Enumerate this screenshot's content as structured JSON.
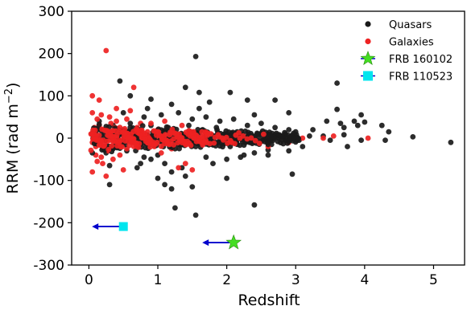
{
  "chart_data": {
    "type": "scatter",
    "xlabel": "Redshift",
    "ylabel": "RRM (rad m",
    "ylabel_sup": "−2",
    "ylabel_close": ")",
    "xlim": [
      -0.25,
      5.45
    ],
    "ylim": [
      -300,
      300
    ],
    "xticks": [
      0,
      1,
      2,
      3,
      4,
      5
    ],
    "yticks": [
      -300,
      -200,
      -100,
      0,
      100,
      200,
      300
    ],
    "grid": false,
    "legend_position": "top-right",
    "colors": {
      "quasars": "#1a1a1a",
      "galaxies": "#ee2222",
      "frb_160102": "#44dd22",
      "frb_110523": "#00e5ee",
      "upper_limit_arrow": "#0000cc"
    },
    "legend": [
      {
        "label": "Quasars",
        "marker": "circle",
        "color": "#1a1a1a"
      },
      {
        "label": "Galaxies",
        "marker": "circle",
        "color": "#ee2222"
      },
      {
        "label": "FRB 160102",
        "marker": "star",
        "color": "#44dd22"
      },
      {
        "label": "FRB 110523",
        "marker": "square",
        "color": "#00e5ee"
      }
    ],
    "series": [
      {
        "name": "Quasars",
        "marker": "circle",
        "points": [
          [
            0.45,
            135
          ],
          [
            0.6,
            100
          ],
          [
            0.9,
            92
          ],
          [
            1.2,
            80
          ],
          [
            1.4,
            120
          ],
          [
            1.55,
            193
          ],
          [
            1.6,
            108
          ],
          [
            1.75,
            85
          ],
          [
            2.05,
            108
          ],
          [
            2.3,
            90
          ],
          [
            2.7,
            90
          ],
          [
            2.9,
            60
          ],
          [
            3.45,
            40
          ],
          [
            3.6,
            68
          ],
          [
            3.65,
            35
          ],
          [
            3.7,
            25
          ],
          [
            3.85,
            40
          ],
          [
            3.9,
            30
          ],
          [
            3.95,
            55
          ],
          [
            4.0,
            38
          ],
          [
            3.6,
            130
          ],
          [
            4.25,
            30
          ],
          [
            4.35,
            15
          ],
          [
            4.7,
            3
          ],
          [
            5.25,
            -10
          ],
          [
            4.3,
            -5
          ],
          [
            3.95,
            -5
          ],
          [
            3.7,
            8
          ],
          [
            3.4,
            5
          ],
          [
            3.5,
            -5
          ],
          [
            3.1,
            -20
          ],
          [
            3.2,
            5
          ],
          [
            0.25,
            -35
          ],
          [
            0.35,
            -25
          ],
          [
            0.55,
            -30
          ],
          [
            0.75,
            -60
          ],
          [
            0.8,
            -45
          ],
          [
            1.0,
            -40
          ],
          [
            1.1,
            -110
          ],
          [
            1.2,
            -80
          ],
          [
            1.25,
            -165
          ],
          [
            1.2,
            -120
          ],
          [
            1.4,
            -90
          ],
          [
            1.5,
            -115
          ],
          [
            1.55,
            -182
          ],
          [
            1.8,
            -60
          ],
          [
            2.0,
            -50
          ],
          [
            2.2,
            -45
          ],
          [
            2.4,
            -35
          ],
          [
            2.6,
            -40
          ],
          [
            2.4,
            -158
          ],
          [
            2.9,
            -30
          ],
          [
            2.95,
            -85
          ],
          [
            2.0,
            -95
          ],
          [
            1.0,
            -95
          ],
          [
            0.3,
            -110
          ],
          [
            0.7,
            -70
          ],
          [
            0.5,
            60
          ],
          [
            0.8,
            50
          ],
          [
            1.05,
            55
          ],
          [
            1.3,
            60
          ],
          [
            1.5,
            45
          ],
          [
            1.7,
            50
          ],
          [
            1.9,
            40
          ],
          [
            2.1,
            45
          ],
          [
            2.3,
            30
          ],
          [
            2.5,
            35
          ],
          [
            2.7,
            25
          ],
          [
            2.9,
            20
          ],
          [
            3.0,
            15
          ],
          [
            0.15,
            40
          ],
          [
            0.35,
            30
          ],
          [
            0.6,
            35
          ],
          [
            0.9,
            30
          ],
          [
            1.15,
            25
          ],
          [
            1.45,
            30
          ],
          [
            1.65,
            20
          ],
          [
            1.85,
            25
          ],
          [
            2.15,
            15
          ],
          [
            2.45,
            10
          ],
          [
            2.75,
            5
          ],
          [
            3.05,
            -5
          ],
          [
            0.2,
            -20
          ],
          [
            0.45,
            -15
          ],
          [
            0.7,
            -20
          ],
          [
            0.95,
            -15
          ],
          [
            1.25,
            -25
          ],
          [
            1.55,
            -20
          ],
          [
            1.8,
            -15
          ],
          [
            2.05,
            -20
          ],
          [
            2.35,
            -10
          ],
          [
            2.65,
            -15
          ],
          [
            2.85,
            -5
          ],
          [
            0.1,
            10
          ],
          [
            0.4,
            5
          ],
          [
            0.65,
            8
          ],
          [
            0.85,
            -5
          ],
          [
            1.05,
            3
          ],
          [
            1.35,
            5
          ],
          [
            1.6,
            -3
          ],
          [
            1.95,
            5
          ],
          [
            2.25,
            2
          ],
          [
            2.55,
            -2
          ],
          [
            0.3,
            -65
          ],
          [
            0.9,
            -50
          ],
          [
            1.1,
            -60
          ],
          [
            1.35,
            -70
          ],
          [
            1.7,
            -45
          ],
          [
            2.25,
            -40
          ],
          [
            2.6,
            -28
          ],
          [
            0.85,
            70
          ],
          [
            1.6,
            70
          ],
          [
            2.4,
            55
          ],
          [
            3.25,
            20
          ],
          [
            3.75,
            -20
          ]
        ]
      },
      {
        "name": "Galaxies",
        "marker": "circle",
        "points": [
          [
            0.25,
            207
          ],
          [
            0.65,
            120
          ],
          [
            0.05,
            60
          ],
          [
            0.12,
            45
          ],
          [
            0.18,
            55
          ],
          [
            0.3,
            50
          ],
          [
            0.4,
            40
          ],
          [
            0.55,
            45
          ],
          [
            0.08,
            25
          ],
          [
            0.15,
            30
          ],
          [
            0.22,
            20
          ],
          [
            0.35,
            15
          ],
          [
            0.5,
            20
          ],
          [
            0.7,
            25
          ],
          [
            0.85,
            15
          ],
          [
            1.0,
            20
          ],
          [
            1.2,
            15
          ],
          [
            1.45,
            10
          ],
          [
            1.7,
            12
          ],
          [
            2.0,
            8
          ],
          [
            2.3,
            5
          ],
          [
            2.6,
            3
          ],
          [
            0.05,
            -10
          ],
          [
            0.1,
            -20
          ],
          [
            0.2,
            -25
          ],
          [
            0.28,
            -30
          ],
          [
            0.4,
            -20
          ],
          [
            0.55,
            -25
          ],
          [
            0.75,
            -15
          ],
          [
            0.95,
            -20
          ],
          [
            1.15,
            -10
          ],
          [
            1.4,
            -15
          ],
          [
            1.65,
            -8
          ],
          [
            1.95,
            -5
          ],
          [
            2.25,
            -3
          ],
          [
            0.05,
            -80
          ],
          [
            0.12,
            -55
          ],
          [
            0.2,
            -60
          ],
          [
            0.35,
            -50
          ],
          [
            0.5,
            -75
          ],
          [
            0.25,
            -90
          ],
          [
            0.1,
            -40
          ],
          [
            0.45,
            -40
          ],
          [
            1.4,
            -60
          ],
          [
            1.5,
            -75
          ],
          [
            1.3,
            -70
          ],
          [
            0.15,
            0
          ],
          [
            0.3,
            5
          ],
          [
            0.45,
            -5
          ],
          [
            0.6,
            0
          ],
          [
            0.8,
            3
          ],
          [
            1.0,
            -3
          ],
          [
            1.25,
            2
          ],
          [
            1.5,
            0
          ],
          [
            1.8,
            1
          ],
          [
            2.1,
            -1
          ],
          [
            2.4,
            0
          ],
          [
            2.8,
            2
          ],
          [
            3.1,
            0
          ],
          [
            3.4,
            0
          ],
          [
            4.05,
            0
          ],
          [
            3.55,
            5
          ],
          [
            0.05,
            100
          ],
          [
            0.15,
            90
          ],
          [
            0.4,
            70
          ],
          [
            0.6,
            65
          ],
          [
            0.9,
            35
          ],
          [
            1.1,
            40
          ],
          [
            1.35,
            30
          ],
          [
            0.1,
            15
          ],
          [
            0.25,
            -5
          ],
          [
            0.38,
            25
          ],
          [
            0.65,
            -10
          ],
          [
            0.75,
            35
          ],
          [
            1.05,
            -35
          ],
          [
            1.2,
            -25
          ],
          [
            2.6,
            -20
          ],
          [
            2.9,
            -10
          ],
          [
            0.18,
            -45
          ],
          [
            0.32,
            35
          ]
        ]
      },
      {
        "name": "FRB 160102",
        "marker": "star",
        "upper_limit": true,
        "points": [
          [
            2.1,
            -247
          ]
        ]
      },
      {
        "name": "FRB 110523",
        "marker": "square",
        "upper_limit": true,
        "points": [
          [
            0.5,
            -209
          ]
        ]
      }
    ]
  }
}
